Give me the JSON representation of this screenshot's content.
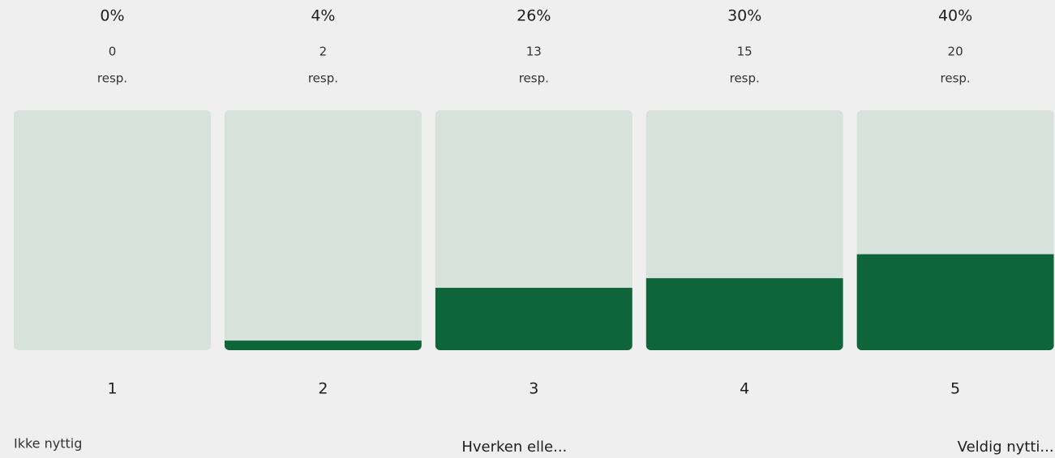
{
  "chart_data": {
    "type": "bar",
    "categories": [
      "1",
      "2",
      "3",
      "4",
      "5"
    ],
    "values": [
      0,
      4,
      26,
      30,
      40
    ],
    "value_labels": [
      "0%",
      "4%",
      "26%",
      "30%",
      "40%"
    ],
    "counts": [
      0,
      2,
      13,
      15,
      20
    ],
    "count_unit": "resp.",
    "scale_labels": [
      "Ikke nyttig",
      null,
      "Hverken elle...",
      null,
      "Veldig nytti..."
    ],
    "ylim": [
      0,
      100
    ],
    "color": "#0e6539",
    "track_color": "#d7e2dc"
  }
}
